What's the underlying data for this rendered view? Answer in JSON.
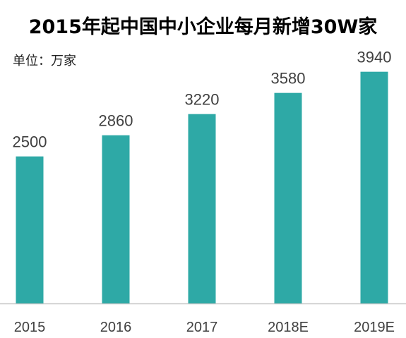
{
  "chart_data": {
    "type": "bar",
    "title": "2015年起中国中小企业每月新增30W家",
    "unit_label": "单位：万家",
    "categories": [
      "2015",
      "2016",
      "2017",
      "2018E",
      "2019E"
    ],
    "values": [
      2500,
      2860,
      3220,
      3580,
      3940
    ],
    "xlabel": "",
    "ylabel": "",
    "ylim": [
      0,
      4200
    ],
    "grid": false,
    "legend": "none",
    "colors": {
      "bar": "#2EA9A6",
      "axis": "#C8C8C8",
      "label": "#404040"
    }
  }
}
